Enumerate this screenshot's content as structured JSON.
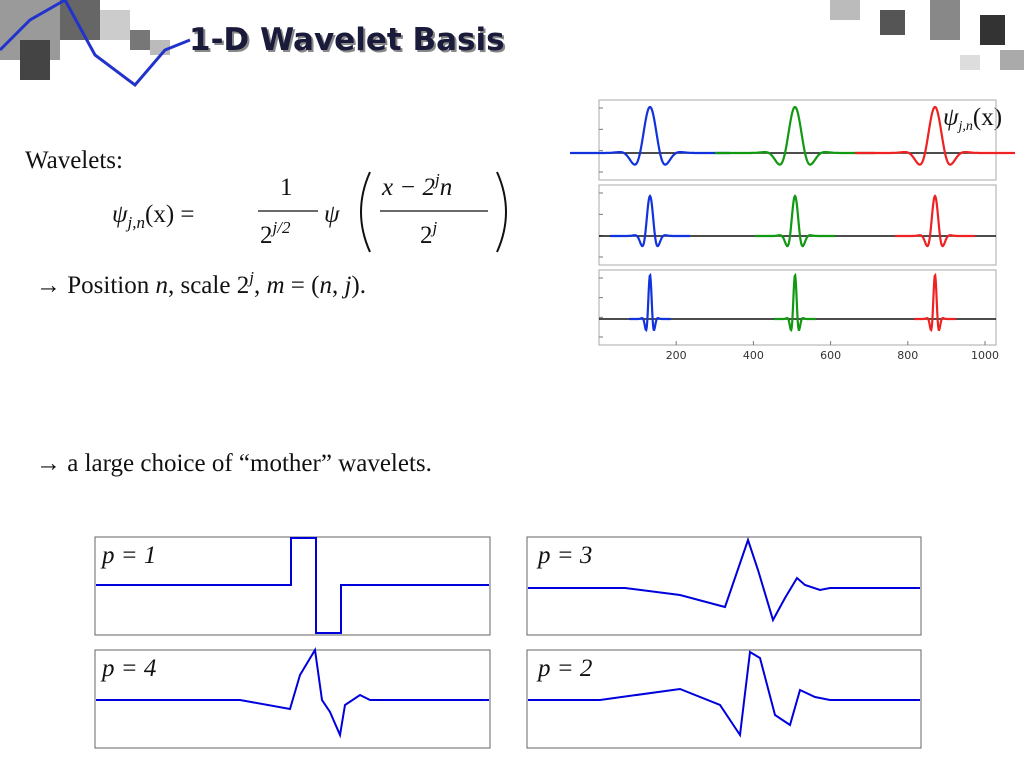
{
  "title": "1-D Wavelet Basis",
  "body": {
    "label": "Wavelets:",
    "formula": {
      "lhs": "ψ",
      "lhs_sub": "j,n",
      "lhs_rest": "(x) =",
      "num": "1",
      "den": "2",
      "den_sup": "j/2",
      "psi": "ψ",
      "inner_num_a": "x − 2",
      "inner_num_sup": "j",
      "inner_num_b": "n",
      "inner_den": "2",
      "inner_den_sup": "j"
    },
    "position_line": {
      "a": "→ Position ",
      "n": "n",
      "b": ", scale 2",
      "sup": "j",
      "c": ", ",
      "m": "m",
      "d": " = (",
      "n2": "n",
      "e": ", ",
      "j": "j",
      "f": ")."
    },
    "choice_line": "→ a large choice of “mother” wavelets."
  },
  "figure_top": {
    "label": "ψ",
    "label_sub": "j,n",
    "label_rest": "(x)",
    "xticks": [
      200,
      400,
      600,
      800,
      1000
    ]
  },
  "figure_bottom": {
    "panels": [
      "p = 1",
      "p = 3",
      "p = 4",
      "p = 2"
    ]
  }
}
